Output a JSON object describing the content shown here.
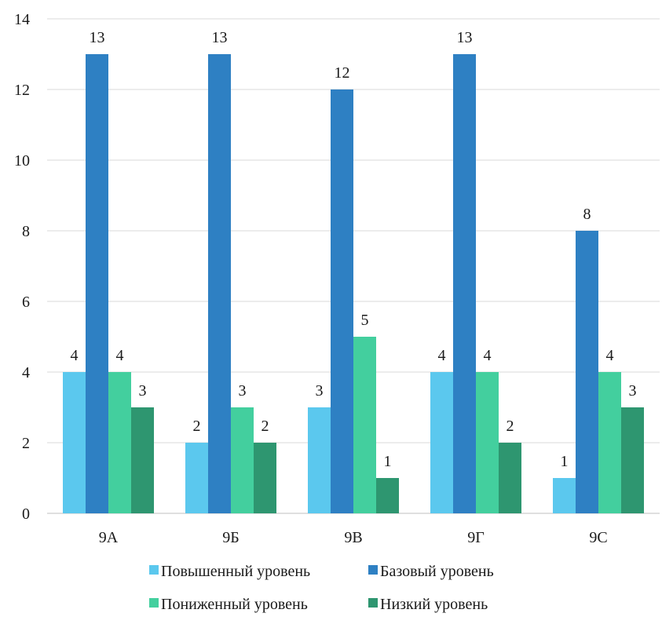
{
  "chart_data": {
    "type": "bar",
    "title": "",
    "xlabel": "",
    "ylabel": "",
    "categories": [
      "9А",
      "9Б",
      "9В",
      "9Г",
      "9С"
    ],
    "ylim": [
      0,
      14
    ],
    "yticks": [
      0,
      2,
      4,
      6,
      8,
      10,
      12,
      14
    ],
    "grid": "horizontal",
    "legend_position": "bottom",
    "series": [
      {
        "name": "Повышенный уровень",
        "color": "#5BC8EE",
        "values": [
          4,
          2,
          3,
          4,
          1
        ]
      },
      {
        "name": "Базовый уровень",
        "color": "#2E80C3",
        "values": [
          13,
          13,
          12,
          13,
          8
        ]
      },
      {
        "name": "Пониженный уровень",
        "color": "#43CF9E",
        "values": [
          4,
          3,
          5,
          4,
          4
        ]
      },
      {
        "name": "Низкий уровень",
        "color": "#2E9670",
        "values": [
          3,
          2,
          1,
          2,
          3
        ]
      }
    ]
  }
}
